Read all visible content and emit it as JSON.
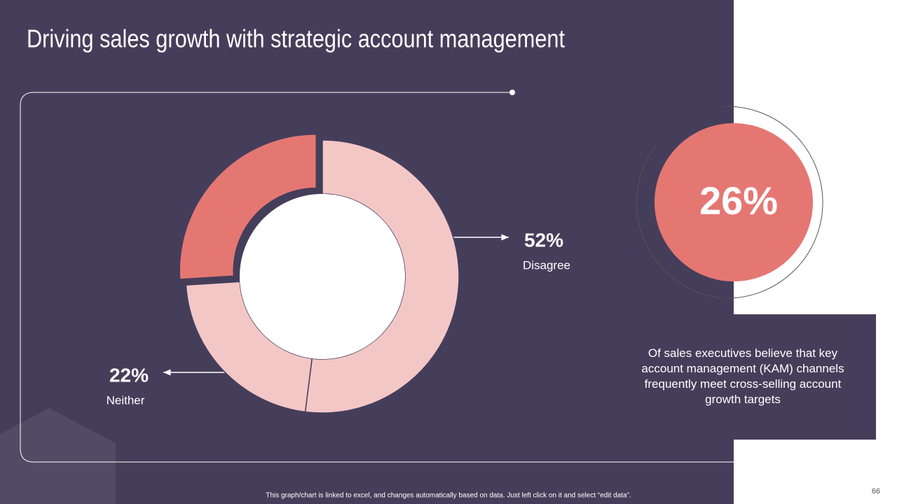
{
  "chart_data": {
    "type": "donut",
    "title": "Driving sales growth with strategic account management",
    "categories": [
      "Disagree",
      "Neither",
      null
    ],
    "values": [
      52,
      22,
      26
    ],
    "value_labels": [
      "52%",
      "22%",
      "26%"
    ],
    "colors": [
      "#f4c7c7",
      "#f4c7c7",
      "#e57773"
    ],
    "exploded": [
      false,
      false,
      true
    ]
  },
  "callout": "Of sales executives believe that key account management (KAM) channels frequently meet cross-selling account growth targets",
  "footnote": "This graph/chart is linked to excel, and changes automatically based on data. Just left click on it and select “edit data”.",
  "page_number": "66"
}
